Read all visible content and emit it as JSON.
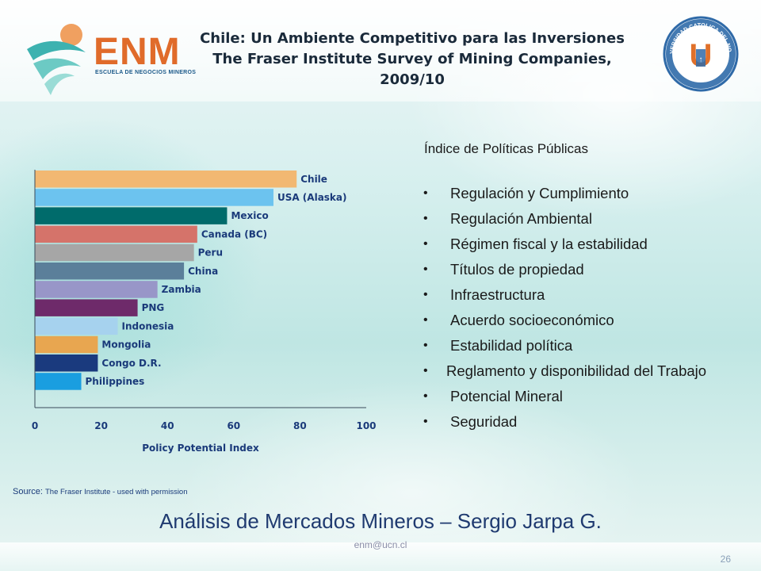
{
  "header": {
    "title_line1": "Chile: Un Ambiente Competitivo para las Inversiones",
    "title_line2": "The Fraser Institute Survey of Mining Companies, 2009/10",
    "logo_left_text": "ENM",
    "logo_left_sub": "ESCUELA DE NEGOCIOS MINEROS",
    "seal_top_text": "UNIVERSIDAD CATOLICA DEL NORTE",
    "seal_bottom_text": "CHILE",
    "seal_letter": "U"
  },
  "chart_data": {
    "type": "bar",
    "orientation": "horizontal",
    "categories": [
      "Chile",
      "USA (Alaska)",
      "Mexico",
      "Canada (BC)",
      "Peru",
      "China",
      "Zambia",
      "PNG",
      "Indonesia",
      "Mongolia",
      "Congo D.R.",
      "Philippines"
    ],
    "values": [
      79,
      72,
      58,
      49,
      48,
      45,
      37,
      31,
      25,
      19,
      19,
      14
    ],
    "colors": [
      "#f2b872",
      "#6cc3ef",
      "#006b6b",
      "#d5736a",
      "#a6a6a6",
      "#5b7f9a",
      "#9896c8",
      "#6e2a6a",
      "#a6d2ee",
      "#e8a650",
      "#1a3a7e",
      "#1a9ee0"
    ],
    "xlabel": "Policy Potential Index",
    "xlim": [
      0,
      100
    ],
    "xticks": [
      0,
      20,
      40,
      60,
      80,
      100
    ],
    "grid": false
  },
  "policy": {
    "title": "Índice de  Políticas Públicas",
    "items": [
      " Regulación y Cumplimiento",
      " Regulación Ambiental",
      " Régimen fiscal y la estabilidad",
      " Títulos de propiedad",
      " Infraestructura",
      " Acuerdo socioeconómico",
      " Estabilidad política",
      "Reglamento y disponibilidad del Trabajo",
      " Potencial Mineral",
      " Seguridad"
    ]
  },
  "footer": {
    "source_label": "Source:",
    "source_text": "The Fraser Institute - used with permission",
    "title": "Análisis  de Mercados Mineros – Sergio Jarpa G.",
    "email": "enm@ucn.cl",
    "page_number": "26"
  }
}
